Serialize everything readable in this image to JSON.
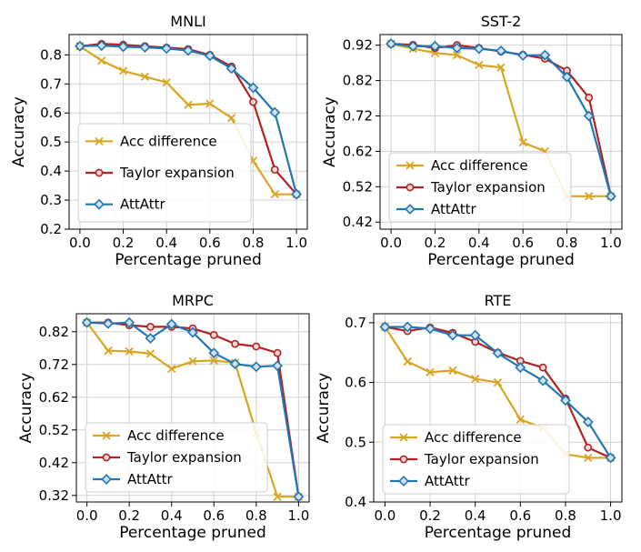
{
  "chart_data": [
    {
      "type": "line",
      "title": "MNLI",
      "xlabel": "Percentage pruned",
      "ylabel": "Accuracy",
      "x": [
        0.0,
        0.1,
        0.2,
        0.3,
        0.4,
        0.5,
        0.6,
        0.7,
        0.8,
        0.9,
        1.0
      ],
      "xlim": [
        -0.05,
        1.05
      ],
      "ylim": [
        0.2,
        0.87
      ],
      "xticks": [
        0.0,
        0.2,
        0.4,
        0.6,
        0.8,
        1.0
      ],
      "xtick_labels": [
        "0.0",
        "0.2",
        "0.4",
        "0.6",
        "0.8",
        "1.0"
      ],
      "yticks": [
        0.2,
        0.3,
        0.4,
        0.5,
        0.6,
        0.7,
        0.8
      ],
      "ytick_labels": [
        "0.2",
        "0.3",
        "0.4",
        "0.5",
        "0.6",
        "0.7",
        "0.8"
      ],
      "grid": true,
      "legend_position": "lower-left",
      "series": [
        {
          "name": "Acc difference",
          "color": "#DAA520",
          "marker": "x",
          "values": [
            0.83,
            0.78,
            0.745,
            0.725,
            0.705,
            0.628,
            0.632,
            0.583,
            0.435,
            0.32,
            0.32
          ]
        },
        {
          "name": "Taylor expansion",
          "color": "#B22222",
          "marker": "circle",
          "values": [
            0.83,
            0.838,
            0.835,
            0.83,
            0.825,
            0.82,
            0.8,
            0.76,
            0.638,
            0.405,
            0.32
          ]
        },
        {
          "name": "AttAttr",
          "color": "#1F77B4",
          "marker": "diamond",
          "values": [
            0.83,
            0.832,
            0.828,
            0.826,
            0.822,
            0.815,
            0.797,
            0.753,
            0.687,
            0.602,
            0.32
          ]
        }
      ]
    },
    {
      "type": "line",
      "title": "SST-2",
      "xlabel": "Percentage pruned",
      "ylabel": "Accuracy",
      "x": [
        0.0,
        0.1,
        0.2,
        0.3,
        0.4,
        0.5,
        0.6,
        0.7,
        0.8,
        0.9,
        1.0
      ],
      "xlim": [
        -0.05,
        1.05
      ],
      "ylim": [
        0.4,
        0.95
      ],
      "xticks": [
        0.0,
        0.2,
        0.4,
        0.6,
        0.8,
        1.0
      ],
      "xtick_labels": [
        "0.0",
        "0.2",
        "0.4",
        "0.6",
        "0.8",
        "1.0"
      ],
      "yticks": [
        0.42,
        0.52,
        0.62,
        0.72,
        0.82,
        0.92
      ],
      "ytick_labels": [
        "0.42",
        "0.52",
        "0.62",
        "0.72",
        "0.82",
        "0.92"
      ],
      "grid": true,
      "legend_position": "lower-left",
      "series": [
        {
          "name": "Acc difference",
          "color": "#DAA520",
          "marker": "x",
          "values": [
            0.924,
            0.91,
            0.898,
            0.892,
            0.864,
            0.857,
            0.645,
            0.62,
            0.493,
            0.493,
            0.493
          ]
        },
        {
          "name": "Taylor expansion",
          "color": "#B22222",
          "marker": "circle",
          "values": [
            0.924,
            0.921,
            0.912,
            0.92,
            0.912,
            0.902,
            0.893,
            0.882,
            0.848,
            0.772,
            0.493
          ]
        },
        {
          "name": "AttAttr",
          "color": "#1F77B4",
          "marker": "diamond",
          "values": [
            0.924,
            0.917,
            0.917,
            0.912,
            0.91,
            0.904,
            0.891,
            0.892,
            0.83,
            0.72,
            0.493
          ]
        }
      ]
    },
    {
      "type": "line",
      "title": "MRPC",
      "xlabel": "Percentage pruned",
      "ylabel": "Accuracy",
      "x": [
        0.0,
        0.1,
        0.2,
        0.3,
        0.4,
        0.5,
        0.6,
        0.7,
        0.8,
        0.9,
        1.0
      ],
      "xlim": [
        -0.05,
        1.05
      ],
      "ylim": [
        0.3,
        0.875
      ],
      "xticks": [
        0.0,
        0.2,
        0.4,
        0.6,
        0.8,
        1.0
      ],
      "xtick_labels": [
        "0.0",
        "0.2",
        "0.4",
        "0.6",
        "0.8",
        "1.0"
      ],
      "yticks": [
        0.32,
        0.42,
        0.52,
        0.62,
        0.72,
        0.82
      ],
      "ytick_labels": [
        "0.32",
        "0.42",
        "0.52",
        "0.62",
        "0.72",
        "0.82"
      ],
      "grid": true,
      "legend_position": "lower-left",
      "series": [
        {
          "name": "Acc difference",
          "color": "#DAA520",
          "marker": "x",
          "values": [
            0.848,
            0.762,
            0.76,
            0.753,
            0.707,
            0.73,
            0.732,
            0.725,
            0.512,
            0.316,
            0.316
          ]
        },
        {
          "name": "Taylor expansion",
          "color": "#B22222",
          "marker": "circle",
          "values": [
            0.848,
            0.848,
            0.84,
            0.835,
            0.835,
            0.83,
            0.81,
            0.783,
            0.775,
            0.755,
            0.316
          ]
        },
        {
          "name": "AttAttr",
          "color": "#1F77B4",
          "marker": "diamond",
          "values": [
            0.848,
            0.845,
            0.848,
            0.8,
            0.843,
            0.818,
            0.755,
            0.722,
            0.713,
            0.716,
            0.316
          ]
        }
      ]
    },
    {
      "type": "line",
      "title": "RTE",
      "xlabel": "Percentage pruned",
      "ylabel": "Accuracy",
      "x": [
        0.0,
        0.1,
        0.2,
        0.3,
        0.4,
        0.5,
        0.6,
        0.7,
        0.8,
        0.9,
        1.0
      ],
      "xlim": [
        -0.05,
        1.05
      ],
      "ylim": [
        0.4,
        0.715
      ],
      "xticks": [
        0.0,
        0.2,
        0.4,
        0.6,
        0.8,
        1.0
      ],
      "xtick_labels": [
        "0.0",
        "0.2",
        "0.4",
        "0.6",
        "0.8",
        "1.0"
      ],
      "yticks": [
        0.4,
        0.5,
        0.6,
        0.7
      ],
      "ytick_labels": [
        "0.4",
        "0.5",
        "0.6",
        "0.7"
      ],
      "grid": true,
      "legend_position": "lower-left",
      "series": [
        {
          "name": "Acc difference",
          "color": "#DAA520",
          "marker": "x",
          "values": [
            0.693,
            0.635,
            0.617,
            0.62,
            0.606,
            0.6,
            0.538,
            0.524,
            0.48,
            0.474,
            0.474
          ]
        },
        {
          "name": "Taylor expansion",
          "color": "#B22222",
          "marker": "circle",
          "values": [
            0.693,
            0.686,
            0.692,
            0.683,
            0.668,
            0.65,
            0.636,
            0.625,
            0.573,
            0.491,
            0.474
          ]
        },
        {
          "name": "AttAttr",
          "color": "#1F77B4",
          "marker": "diamond",
          "values": [
            0.693,
            0.693,
            0.69,
            0.679,
            0.679,
            0.649,
            0.625,
            0.603,
            0.57,
            0.534,
            0.474
          ]
        }
      ]
    }
  ]
}
